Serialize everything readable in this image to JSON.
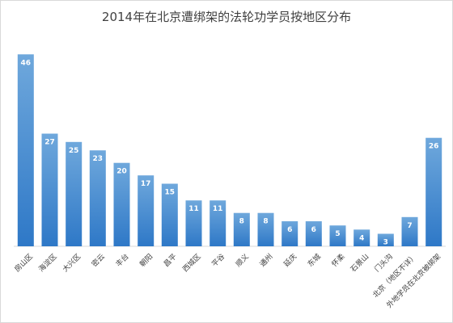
{
  "chart_data": {
    "type": "bar",
    "title": "2014年在北京遭绑架的法轮功学员按地区分布",
    "xlabel": "",
    "ylabel": "",
    "ylim": [
      0,
      48
    ],
    "grid": false,
    "legend": "none",
    "categories": [
      "房山区",
      "海淀区",
      "大兴区",
      "密云",
      "丰台",
      "朝阳",
      "昌平",
      "西城区",
      "平谷",
      "顺义",
      "通州",
      "延庆",
      "东城",
      "怀柔",
      "石景山",
      "门头沟",
      "北京（地区不详）",
      "外地学员在北京被绑架"
    ],
    "values": [
      46,
      27,
      25,
      23,
      20,
      17,
      15,
      11,
      11,
      8,
      8,
      6,
      6,
      5,
      4,
      3,
      7,
      26
    ],
    "colors": {
      "bar_top": "#6fa8dc",
      "bar_bottom": "#2e78c7",
      "label": "#ffffff",
      "axis_text": "#404040",
      "baseline": "#d9d9d9"
    }
  }
}
